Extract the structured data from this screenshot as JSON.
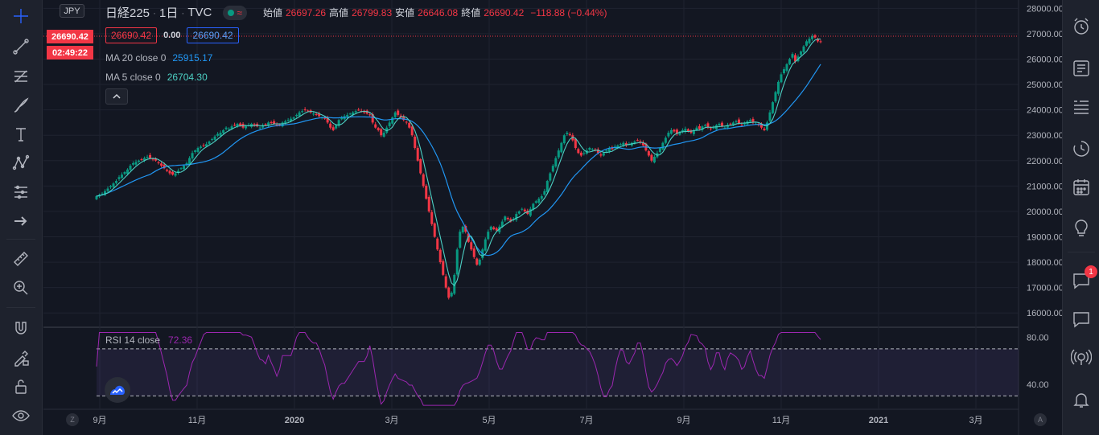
{
  "toolbar_left": {
    "icons": [
      "crosshair-icon",
      "trend-line-icon",
      "fib-icon",
      "brush-icon",
      "text-icon",
      "pattern-icon",
      "prediction-icon",
      "arrow-icon",
      "ruler-icon",
      "zoom-icon",
      "magnet-icon",
      "lock-draw-icon",
      "unlock-icon",
      "eye-icon"
    ]
  },
  "toolbar_right": {
    "icons": [
      "alarm-icon",
      "news-icon",
      "watchlist-icon",
      "history-icon",
      "calendar-icon",
      "idea-icon",
      "chat-icon",
      "message-icon",
      "broadcast-icon",
      "bell-icon"
    ],
    "chat_badge": "1"
  },
  "header": {
    "currency": "JPY",
    "symbol": "日経225",
    "interval": "1日",
    "source": "TVC",
    "open_label": "始値",
    "open": "26697.26",
    "high_label": "高値",
    "high": "26799.83",
    "low_label": "安値",
    "low": "26646.08",
    "close_label": "終値",
    "close": "26690.42",
    "change": "−118.88 (−0.44%)",
    "bid": "26690.42",
    "spread": "0.00",
    "ask": "26690.42"
  },
  "indicators": {
    "ma20_label": "MA 20 close 0",
    "ma20_value": "25915.17",
    "ma5_label": "MA 5 close 0",
    "ma5_value": "26704.30",
    "rsi_label": "RSI 14 close",
    "rsi_value": "72.36"
  },
  "price_tags": {
    "last_price": "26690.42",
    "countdown": "02:49:22"
  },
  "colors": {
    "up": "#089981",
    "down": "#f23645",
    "ma20": "#2196f3",
    "ma5": "#4dd0c4",
    "rsi": "#9c27b0"
  },
  "chart_data": {
    "type": "candlestick",
    "price_axis_ticks": [
      "16000.00",
      "17000.00",
      "18000.00",
      "19000.00",
      "20000.00",
      "21000.00",
      "22000.00",
      "23000.00",
      "24000.00",
      "25000.00",
      "26000.00",
      "27000.00",
      "28000.00"
    ],
    "price_range": [
      15500,
      28200
    ],
    "time_axis_labels": [
      "9月",
      "11月",
      "2020",
      "3月",
      "5月",
      "7月",
      "9月",
      "11月",
      "2021",
      "3月"
    ],
    "rsi_ticks": [
      "80.00",
      "40.00"
    ],
    "rsi_range": [
      20,
      85
    ],
    "rsi_bands": [
      70,
      30
    ],
    "axis_buttons": [
      "Z",
      "A"
    ],
    "close_series": [
      20600,
      20650,
      20700,
      20800,
      20900,
      21000,
      21100,
      21200,
      21350,
      21450,
      21550,
      21650,
      21800,
      21900,
      21950,
      22000,
      22050,
      22100,
      22150,
      22100,
      22050,
      22000,
      21900,
      21800,
      21700,
      21600,
      21500,
      21450,
      21500,
      21600,
      21700,
      21800,
      21900,
      22100,
      22300,
      22400,
      22500,
      22550,
      22600,
      22650,
      22750,
      22850,
      22950,
      23050,
      23100,
      23200,
      23300,
      23250,
      23350,
      23400,
      23450,
      23380,
      23300,
      23350,
      23400,
      23450,
      23400,
      23350,
      23300,
      23380,
      23420,
      23500,
      23480,
      23450,
      23400,
      23420,
      23500,
      23550,
      23600,
      23650,
      23700,
      23800,
      23900,
      23950,
      24000,
      23950,
      23900,
      23850,
      23800,
      23750,
      23700,
      23650,
      23500,
      23300,
      23200,
      23400,
      23600,
      23700,
      23750,
      23800,
      23850,
      23900,
      23950,
      24000,
      23950,
      23900,
      23850,
      23800,
      23500,
      23300,
      23200,
      23000,
      23100,
      23300,
      23500,
      23700,
      23900,
      23800,
      23700,
      23600,
      23500,
      23300,
      23000,
      22500,
      22000,
      21500,
      21000,
      20500,
      20000,
      19500,
      19000,
      18500,
      18000,
      17500,
      17000,
      16600,
      16800,
      17500,
      18500,
      19200,
      19400,
      19200,
      18800,
      18500,
      18200,
      17900,
      18100,
      18500,
      18900,
      19200,
      19400,
      19300,
      19250,
      19400,
      19600,
      19800,
      19700,
      19600,
      19700,
      19900,
      20000,
      20100,
      20000,
      19900,
      20100,
      20300,
      20400,
      20500,
      20600,
      20800,
      21200,
      21500,
      21800,
      22100,
      22400,
      22700,
      23000,
      23100,
      23000,
      22800,
      22500,
      22300,
      22200,
      22300,
      22400,
      22500,
      22450,
      22400,
      22300,
      22200,
      22300,
      22400,
      22500,
      22450,
      22550,
      22600,
      22650,
      22700,
      22600,
      22650,
      22700,
      22750,
      22800,
      22700,
      22600,
      22400,
      22200,
      22000,
      22150,
      22300,
      22500,
      22700,
      22900,
      23100,
      23200,
      23150,
      23050,
      23100,
      23200,
      23250,
      23150,
      23100,
      23200,
      23300,
      23250,
      23350,
      23400,
      23300,
      23250,
      23300,
      23400,
      23450,
      23350,
      23300,
      23400,
      23450,
      23500,
      23550,
      23450,
      23400,
      23500,
      23550,
      23600,
      23500,
      23450,
      23400,
      23300,
      23200,
      23500,
      23900,
      24300,
      24700,
      25100,
      25400,
      25600,
      25800,
      26000,
      26200,
      25900,
      26100,
      26300,
      26500,
      26700,
      26800,
      26900,
      26850,
      26700,
      26690
    ]
  }
}
